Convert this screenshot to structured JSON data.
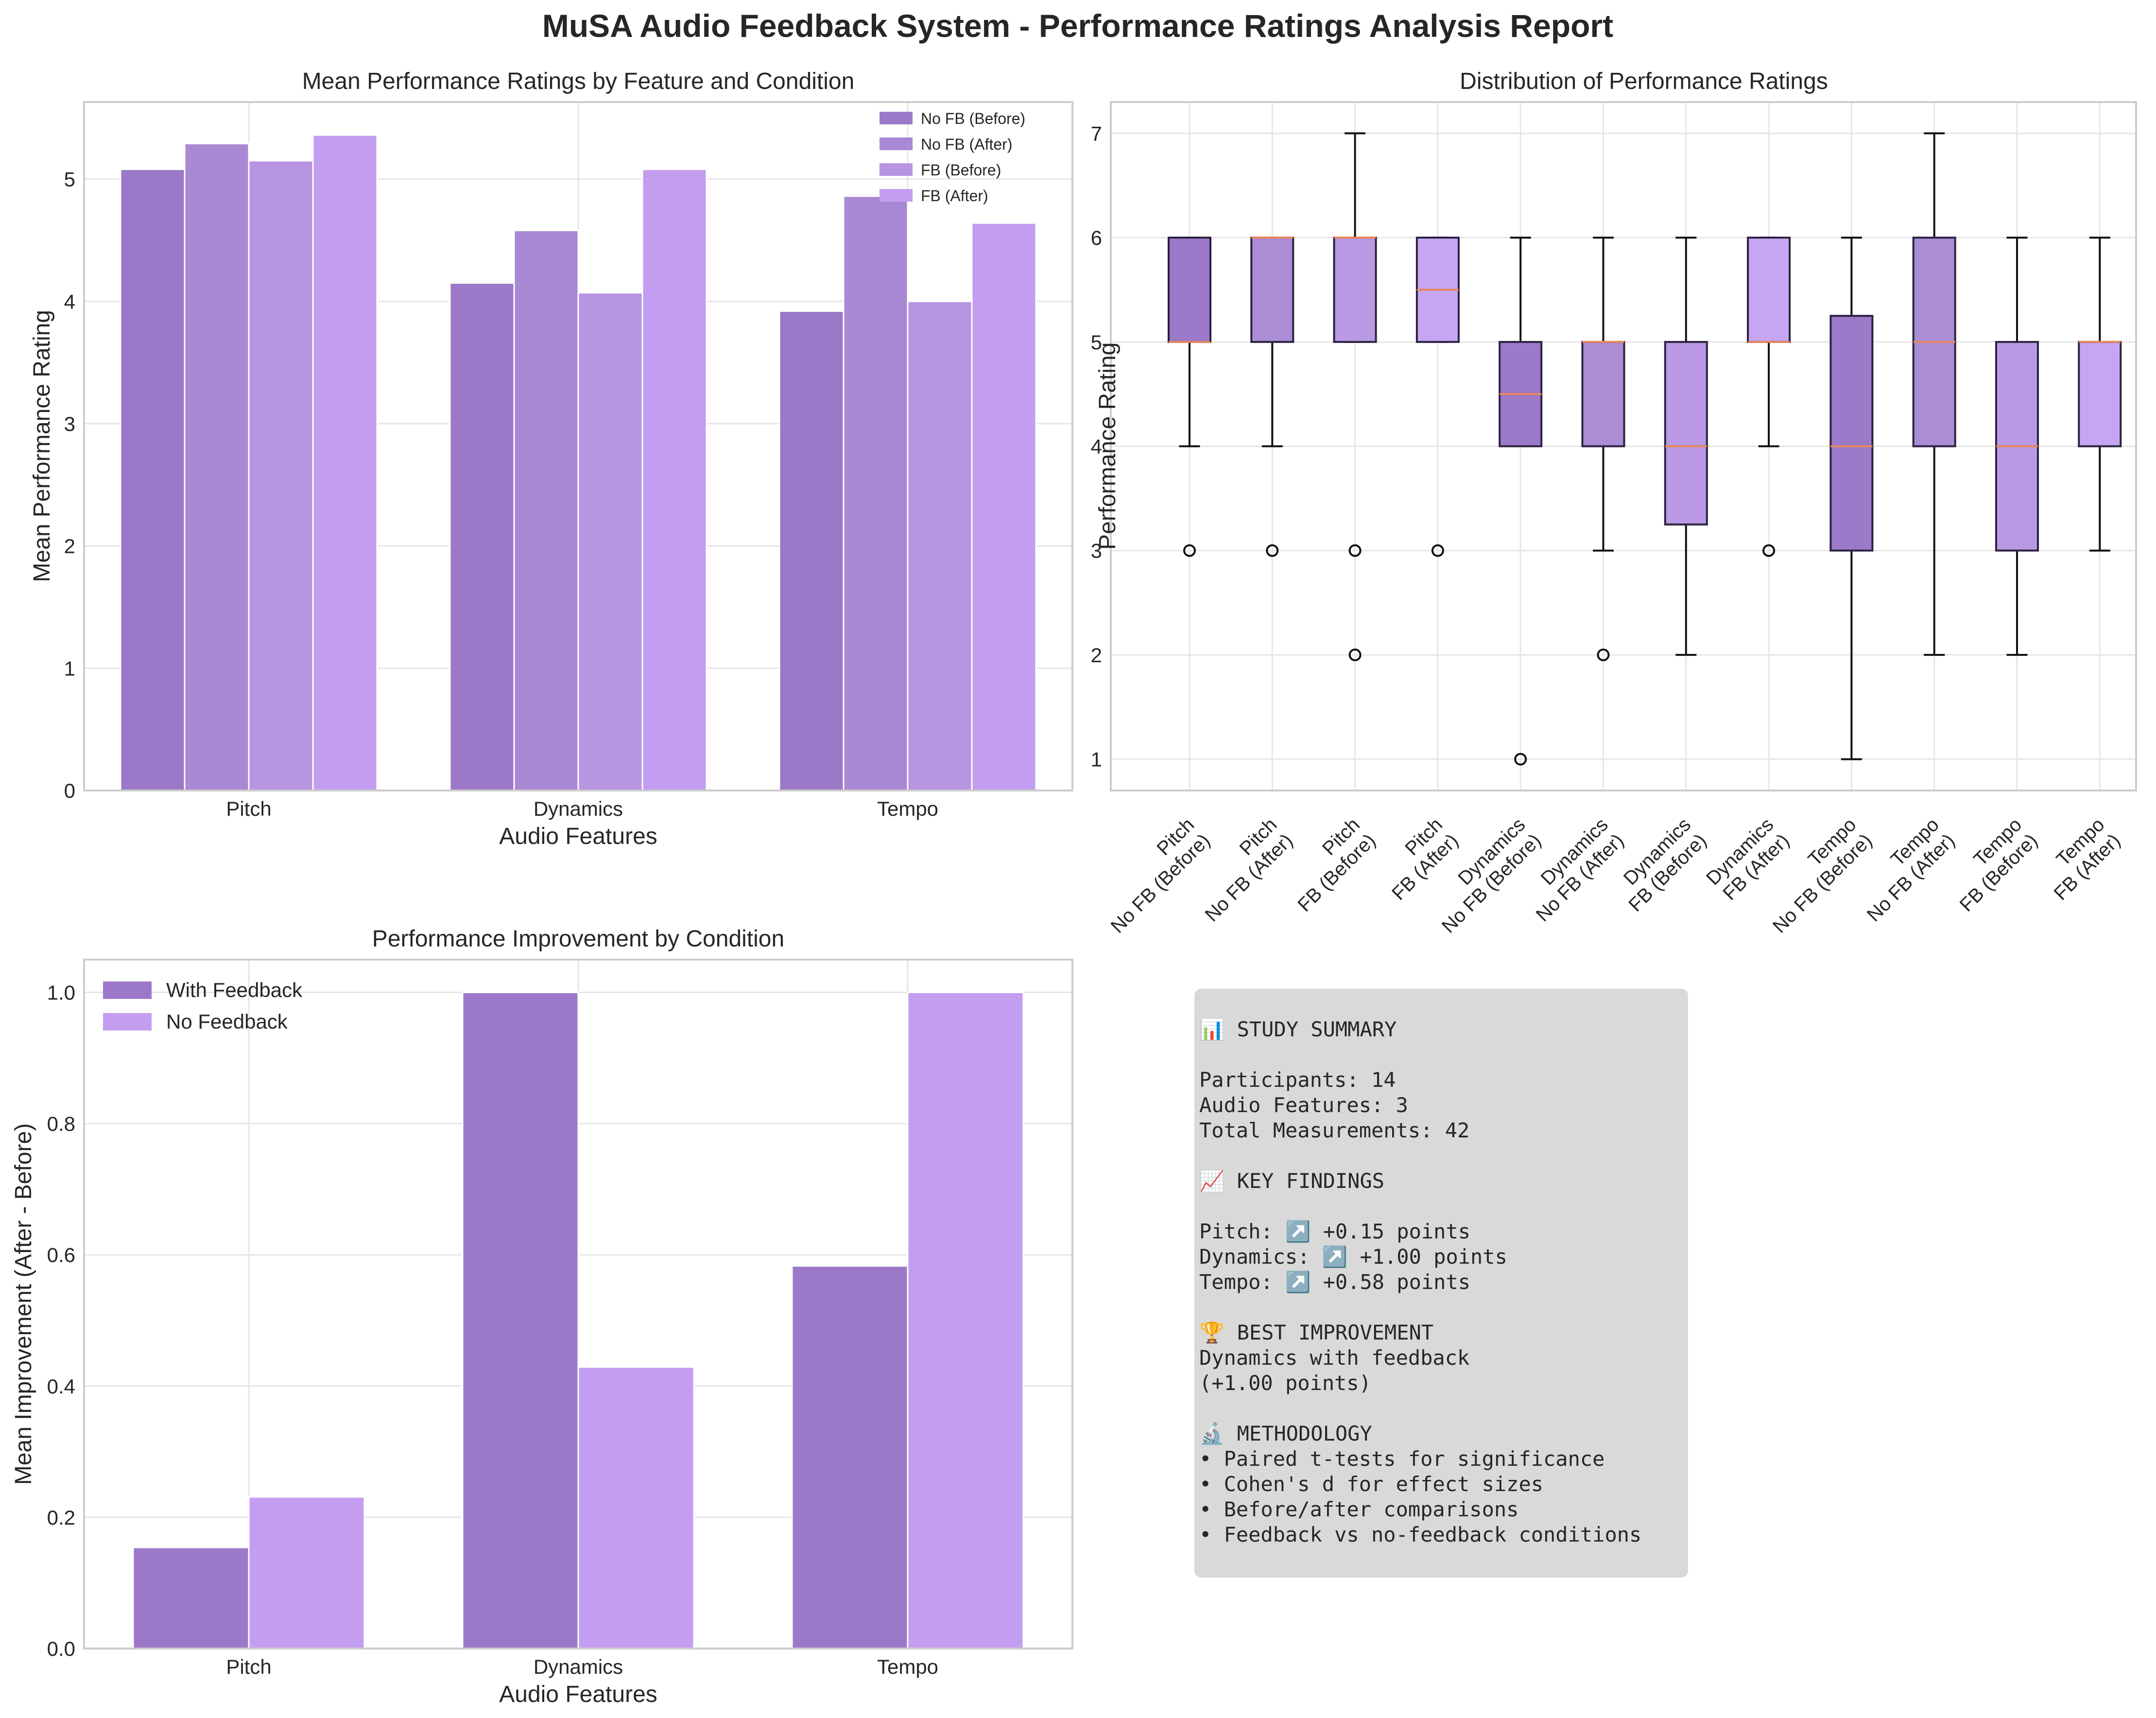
{
  "figure_title": "MuSA Audio Feedback System - Performance Ratings Analysis Report",
  "colors": {
    "no_fb_before": "#9c79c8",
    "no_fb_after": "#a988d4",
    "fb_before": "#b795e1",
    "fb_after": "#c39ef0",
    "box_nofb_before": "#9d79c9",
    "box_nofb_after": "#ab8dd6",
    "box_fb_before": "#b999e3",
    "box_fb_after": "#c6a6f2",
    "median": "#e8885a",
    "panel_bg": "#d9d9d9"
  },
  "chart_data": [
    {
      "id": "mean_ratings",
      "type": "bar",
      "title": "Mean Performance Ratings by Feature and Condition",
      "xlabel": "Audio Features",
      "ylabel": "Mean Performance Rating",
      "categories": [
        "Pitch",
        "Dynamics",
        "Tempo"
      ],
      "series": [
        {
          "name": "No FB (Before)",
          "values": [
            5.08,
            4.15,
            3.92
          ]
        },
        {
          "name": "No FB (After)",
          "values": [
            5.29,
            4.58,
            4.86
          ]
        },
        {
          "name": "FB (Before)",
          "values": [
            5.15,
            4.07,
            4.0
          ]
        },
        {
          "name": "FB (After)",
          "values": [
            5.36,
            5.08,
            4.64
          ]
        }
      ],
      "ylim": [
        0,
        5.63
      ],
      "yticks": [
        "0",
        "1",
        "2",
        "3",
        "4",
        "5"
      ],
      "legend": "top-right",
      "grid": true
    },
    {
      "id": "distribution",
      "type": "box",
      "title": "Distribution of Performance Ratings",
      "ylabel": "Performance Rating",
      "ylim": [
        0.7,
        7.3
      ],
      "yticks": [
        "1",
        "2",
        "3",
        "4",
        "5",
        "6",
        "7"
      ],
      "grid": true,
      "boxes": [
        {
          "feature": "Pitch",
          "condition": "No FB (Before)",
          "q1": 5,
          "median": 5,
          "q3": 6,
          "whisker_low": 4,
          "whisker_high": 6,
          "outliers": [
            3
          ]
        },
        {
          "feature": "Pitch",
          "condition": "No FB (After)",
          "q1": 5,
          "median": 6,
          "q3": 6,
          "whisker_low": 4,
          "whisker_high": 6,
          "outliers": [
            3
          ]
        },
        {
          "feature": "Pitch",
          "condition": "FB (Before)",
          "q1": 5,
          "median": 6,
          "q3": 6,
          "whisker_low": 5,
          "whisker_high": 7,
          "outliers": [
            3,
            2
          ]
        },
        {
          "feature": "Pitch",
          "condition": "FB (After)",
          "q1": 5,
          "median": 5.5,
          "q3": 6,
          "whisker_low": 5,
          "whisker_high": 6,
          "outliers": [
            3
          ]
        },
        {
          "feature": "Dynamics",
          "condition": "No FB (Before)",
          "q1": 4,
          "median": 4.5,
          "q3": 5,
          "whisker_low": 4,
          "whisker_high": 6,
          "outliers": [
            1
          ]
        },
        {
          "feature": "Dynamics",
          "condition": "No FB (After)",
          "q1": 4,
          "median": 5,
          "q3": 5,
          "whisker_low": 3,
          "whisker_high": 6,
          "outliers": [
            2
          ]
        },
        {
          "feature": "Dynamics",
          "condition": "FB (Before)",
          "q1": 3.25,
          "median": 4,
          "q3": 5,
          "whisker_low": 2,
          "whisker_high": 6,
          "outliers": []
        },
        {
          "feature": "Dynamics",
          "condition": "FB (After)",
          "q1": 5,
          "median": 5,
          "q3": 6,
          "whisker_low": 4,
          "whisker_high": 6,
          "outliers": [
            3
          ]
        },
        {
          "feature": "Tempo",
          "condition": "No FB (Before)",
          "q1": 3,
          "median": 4,
          "q3": 5.25,
          "whisker_low": 1,
          "whisker_high": 6,
          "outliers": []
        },
        {
          "feature": "Tempo",
          "condition": "No FB (After)",
          "q1": 4,
          "median": 5,
          "q3": 6,
          "whisker_low": 2,
          "whisker_high": 7,
          "outliers": []
        },
        {
          "feature": "Tempo",
          "condition": "FB (Before)",
          "q1": 3,
          "median": 4,
          "q3": 5,
          "whisker_low": 2,
          "whisker_high": 6,
          "outliers": []
        },
        {
          "feature": "Tempo",
          "condition": "FB (After)",
          "q1": 4,
          "median": 5,
          "q3": 5,
          "whisker_low": 3,
          "whisker_high": 6,
          "outliers": []
        }
      ]
    },
    {
      "id": "improvement",
      "type": "bar",
      "title": "Performance Improvement by Condition",
      "xlabel": "Audio Features",
      "ylabel": "Mean Improvement (After - Before)",
      "categories": [
        "Pitch",
        "Dynamics",
        "Tempo"
      ],
      "series": [
        {
          "name": "With Feedback",
          "values": [
            0.154,
            1.0,
            0.583
          ]
        },
        {
          "name": "No Feedback",
          "values": [
            0.231,
            0.429,
            1.0
          ]
        }
      ],
      "ylim": [
        0,
        1.05
      ],
      "yticks": [
        "0.0",
        "0.2",
        "0.4",
        "0.6",
        "0.8",
        "1.0"
      ],
      "legend": "top-left",
      "grid": true
    }
  ],
  "summary_lines": [
    "📊 STUDY SUMMARY",
    "",
    "Participants: 14",
    "Audio Features: 3",
    "Total Measurements: 42",
    "",
    "📈 KEY FINDINGS",
    "",
    "Pitch: ↗️ +0.15 points",
    "Dynamics: ↗️ +1.00 points",
    "Tempo: ↗️ +0.58 points",
    "",
    "🏆 BEST IMPROVEMENT",
    "Dynamics with feedback",
    "(+1.00 points)",
    "",
    "🔬 METHODOLOGY",
    "• Paired t-tests for significance",
    "• Cohen's d for effect sizes",
    "• Before/after comparisons",
    "• Feedback vs no-feedback conditions"
  ]
}
